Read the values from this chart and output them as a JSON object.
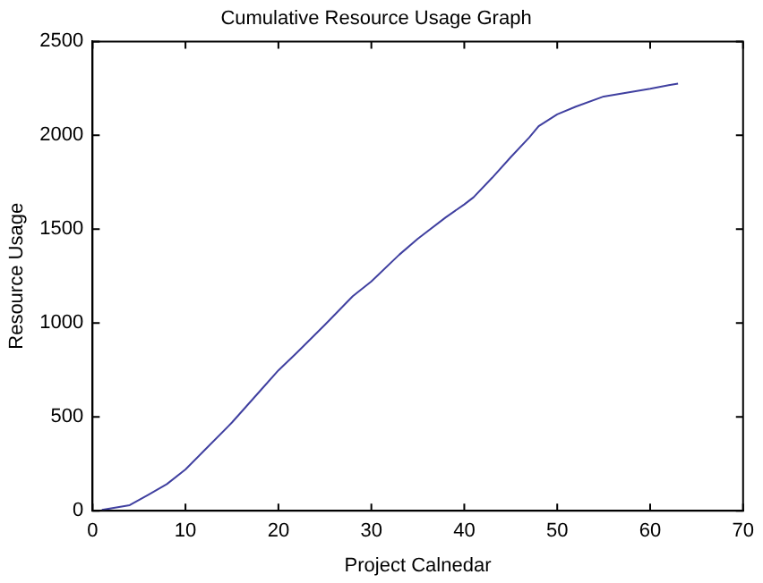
{
  "chart_data": {
    "type": "line",
    "title": "Cumulative Resource Usage Graph",
    "xlabel": "Project Calnedar",
    "ylabel": "Resource Usage",
    "x": [
      1,
      4,
      6,
      8,
      10,
      12,
      15,
      18,
      20,
      22,
      25,
      28,
      30,
      33,
      35,
      38,
      40,
      41,
      43,
      45,
      47,
      48,
      50,
      52,
      55,
      58,
      60,
      62,
      63
    ],
    "series": [
      {
        "color": "#4040a0",
        "values": [
          5,
          30,
          85,
          142,
          220,
          320,
          470,
          637,
          748,
          843,
          991,
          1143,
          1222,
          1364,
          1449,
          1563,
          1632,
          1670,
          1774,
          1884,
          1989,
          2049,
          2112,
          2153,
          2207,
          2232,
          2248,
          2267,
          2276
        ]
      }
    ],
    "xlim": [
      0,
      70
    ],
    "xticks": [
      0,
      10,
      20,
      30,
      40,
      50,
      60,
      70
    ],
    "ylim": [
      0,
      2500
    ],
    "yticks": [
      0,
      500,
      1000,
      1500,
      2000,
      2500
    ],
    "grid": false,
    "legend": false
  }
}
